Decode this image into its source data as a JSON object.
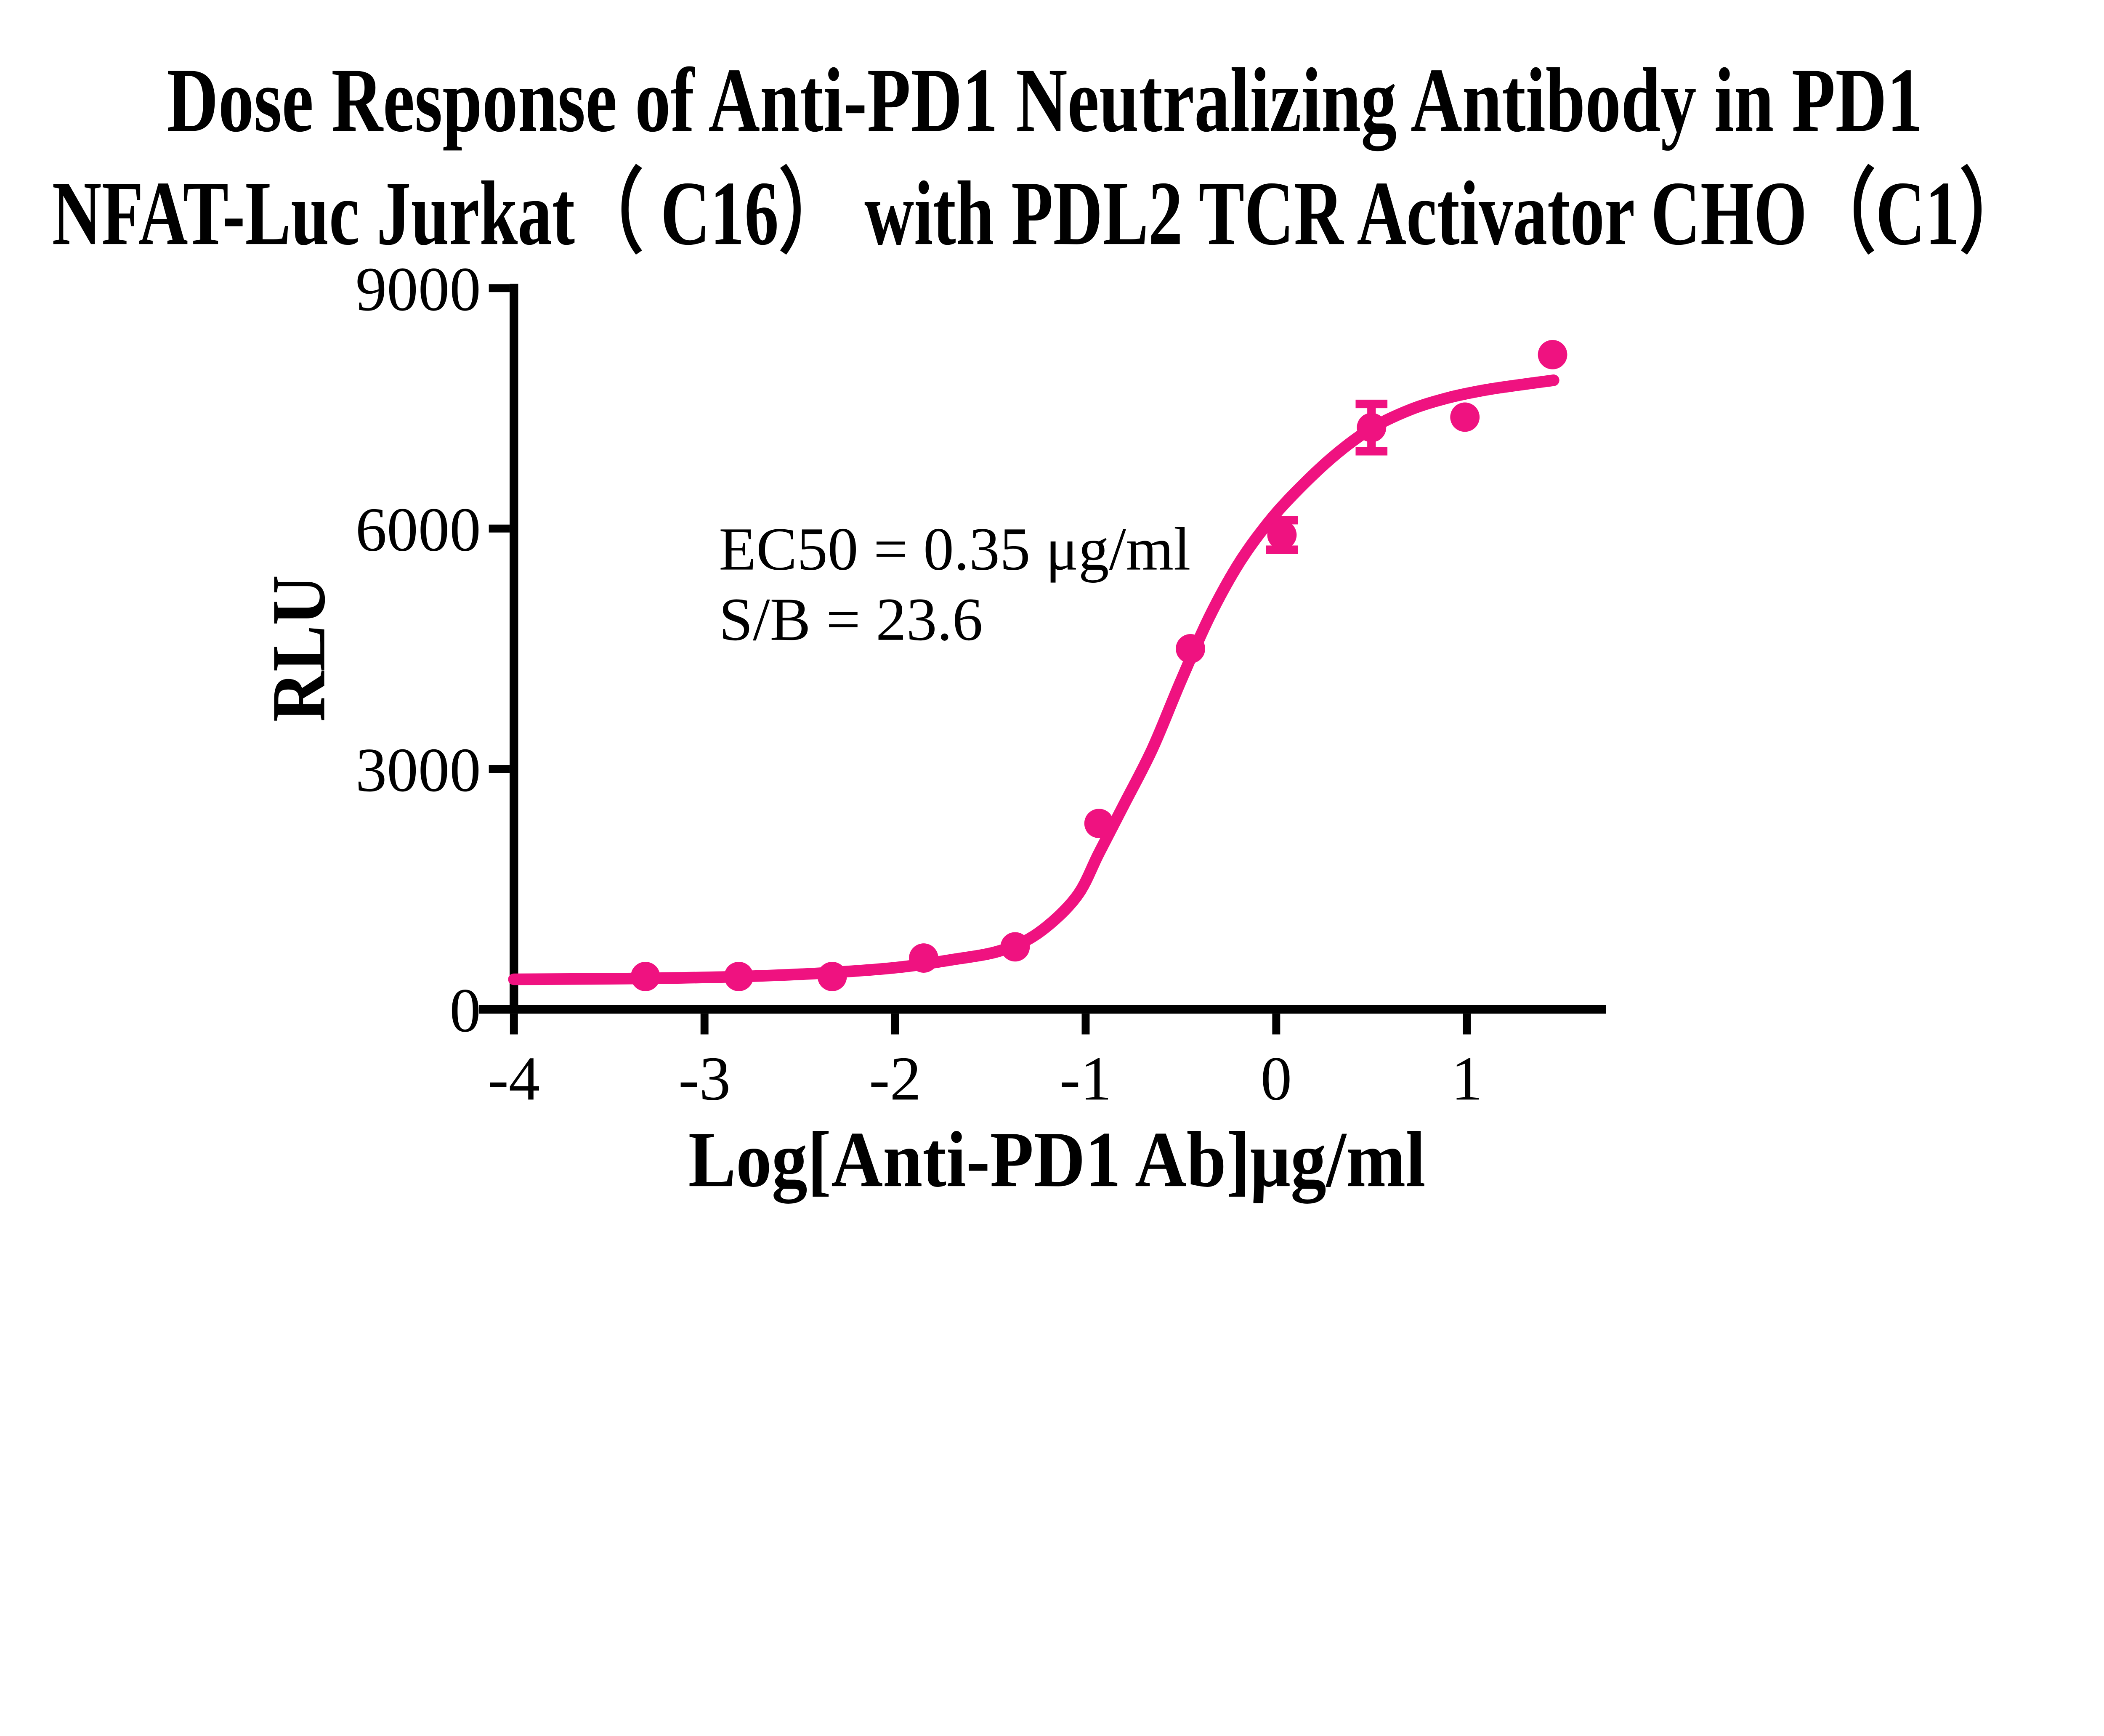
{
  "figure": {
    "background": "#ffffff",
    "title_lines": [
      "Dose Response of Anti-PD1 Neutralizing Antibody in PD1",
      "NFAT-Luc Jurkat（ C16） with PDL2 TCR Activator CHO（C1）"
    ]
  },
  "chart_data": {
    "type": "scatter",
    "title": "Dose Response of Anti-PD1 Neutralizing Antibody in PD1 NFAT-Luc Jurkat（ C16） with PDL2 TCR Activator CHO（C1）",
    "xlabel": "Log[Anti-PD1 Ab]μg/ml",
    "ylabel": "RLU",
    "xlim": [
      -4,
      1.75
    ],
    "ylim": [
      0,
      9000
    ],
    "x_ticks": [
      -4,
      -3,
      -2,
      -1,
      0,
      1
    ],
    "y_ticks": [
      0,
      3000,
      6000,
      9000
    ],
    "grid": false,
    "legend": "none",
    "annotation_lines": [
      "EC50 = 0.35 μg/ml",
      "S/B = 23.6"
    ],
    "ec50": "0.35 μg/ml",
    "s_over_b": "23.6",
    "series": [
      {
        "color": "#EF1280",
        "marker": "circle",
        "points": [
          {
            "x": -3.31,
            "y": 410
          },
          {
            "x": -2.82,
            "y": 410
          },
          {
            "x": -2.33,
            "y": 410
          },
          {
            "x": -1.85,
            "y": 640
          },
          {
            "x": -1.37,
            "y": 780
          },
          {
            "x": -0.93,
            "y": 2320
          },
          {
            "x": -0.45,
            "y": 4500
          },
          {
            "x": 0.03,
            "y": 5920,
            "err": 185
          },
          {
            "x": 0.5,
            "y": 7260,
            "err": 295
          },
          {
            "x": 0.99,
            "y": 7390
          },
          {
            "x": 1.45,
            "y": 8170
          }
        ],
        "fit_curve_points": [
          [
            -4.0,
            375
          ],
          [
            -3.6,
            380
          ],
          [
            -3.2,
            390
          ],
          [
            -2.8,
            410
          ],
          [
            -2.4,
            450
          ],
          [
            -2.0,
            520
          ],
          [
            -1.7,
            620
          ],
          [
            -1.45,
            730
          ],
          [
            -1.25,
            950
          ],
          [
            -1.05,
            1400
          ],
          [
            -0.93,
            1950
          ],
          [
            -0.8,
            2550
          ],
          [
            -0.65,
            3250
          ],
          [
            -0.5,
            4100
          ],
          [
            -0.35,
            4900
          ],
          [
            -0.2,
            5550
          ],
          [
            -0.05,
            6050
          ],
          [
            0.1,
            6450
          ],
          [
            0.3,
            6900
          ],
          [
            0.5,
            7250
          ],
          [
            0.7,
            7480
          ],
          [
            0.9,
            7630
          ],
          [
            1.1,
            7730
          ],
          [
            1.3,
            7800
          ],
          [
            1.455,
            7850
          ]
        ]
      }
    ]
  }
}
